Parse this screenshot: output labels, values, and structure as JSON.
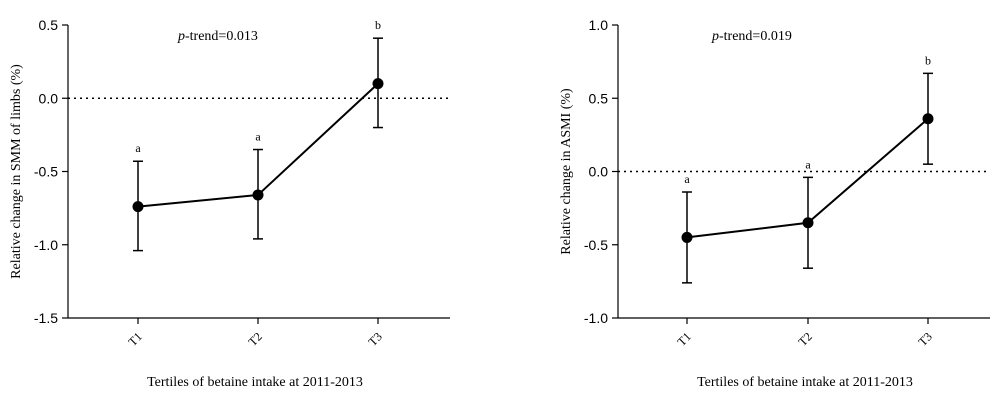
{
  "chart_data": [
    {
      "type": "line",
      "title": "",
      "xlabel": "Tertiles of betaine intake at 2011-2013",
      "ylabel": "Relative change in SMM of limbs (%)",
      "ylim": [
        -1.5,
        0.5
      ],
      "yticks": [
        "0.5",
        "0.0",
        "-0.5",
        "-1.0",
        "-1.5"
      ],
      "ytick_values": [
        0.5,
        0.0,
        -0.5,
        -1.0,
        -1.5
      ],
      "categories": [
        "T1",
        "T2",
        "T3"
      ],
      "values": [
        -0.74,
        -0.66,
        0.1
      ],
      "err_lower": [
        -1.04,
        -0.96,
        -0.2
      ],
      "err_upper": [
        -0.43,
        -0.35,
        0.41
      ],
      "sig_labels": [
        "a",
        "a",
        "b"
      ],
      "reference_line": 0.0,
      "annotation": {
        "italic": "p",
        "text": "-trend=0.013"
      }
    },
    {
      "type": "line",
      "title": "",
      "xlabel": "Tertiles of betaine intake at 2011-2013",
      "ylabel": "Relative change in ASMI (%)",
      "ylim": [
        -1.0,
        1.0
      ],
      "yticks": [
        "1.0",
        "0.5",
        "0.0",
        "-0.5",
        "-1.0"
      ],
      "ytick_values": [
        1.0,
        0.5,
        0.0,
        -0.5,
        -1.0
      ],
      "categories": [
        "T1",
        "T2",
        "T3"
      ],
      "values": [
        -0.45,
        -0.35,
        0.36
      ],
      "err_lower": [
        -0.76,
        -0.66,
        0.05
      ],
      "err_upper": [
        -0.14,
        -0.04,
        0.67
      ],
      "sig_labels": [
        "a",
        "a",
        "b"
      ],
      "reference_line": 0.0,
      "annotation": {
        "italic": "p",
        "text": "-trend=0.019"
      }
    }
  ]
}
